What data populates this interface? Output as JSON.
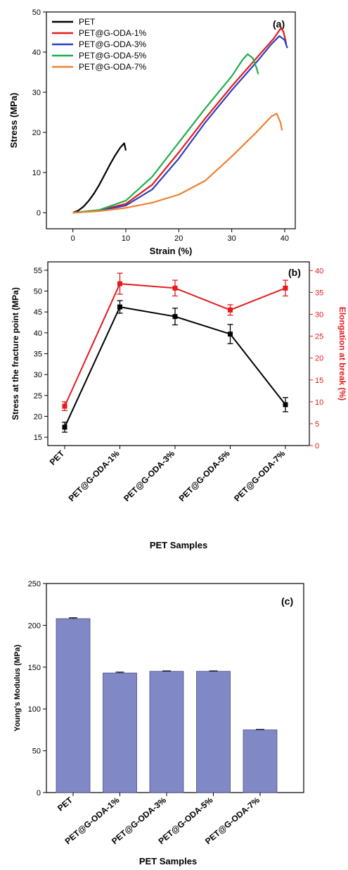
{
  "chart_data": [
    {
      "panel_label": "(a)",
      "type": "line",
      "xlabel": "Strain (%)",
      "ylabel": "Stress (MPa)",
      "xlim": [
        -5,
        42
      ],
      "ylim": [
        -4,
        50
      ],
      "xticks": [
        0,
        10,
        20,
        30,
        40
      ],
      "yticks": [
        0,
        10,
        20,
        30,
        40,
        50
      ],
      "legend_position": "top-left",
      "series": [
        {
          "name": "PET",
          "color": "#000000",
          "points": [
            [
              0,
              0
            ],
            [
              1,
              0.5
            ],
            [
              2,
              1.5
            ],
            [
              3,
              3
            ],
            [
              4,
              4.8
            ],
            [
              5,
              7
            ],
            [
              6,
              9.5
            ],
            [
              7,
              12
            ],
            [
              8,
              14.3
            ],
            [
              9,
              16.3
            ],
            [
              9.7,
              17.3
            ],
            [
              10,
              15.5
            ]
          ]
        },
        {
          "name": "PET@G-ODA-1%",
          "color": "#e41a1c",
          "points": [
            [
              0,
              0
            ],
            [
              5,
              0.6
            ],
            [
              10,
              2.2
            ],
            [
              15,
              7
            ],
            [
              20,
              15
            ],
            [
              25,
              23.5
            ],
            [
              30,
              31.5
            ],
            [
              35,
              39
            ],
            [
              38,
              43.5
            ],
            [
              39.3,
              46
            ],
            [
              39.8,
              45
            ],
            [
              40.3,
              42
            ]
          ]
        },
        {
          "name": "PET@G-ODA-3%",
          "color": "#2b3fbf",
          "points": [
            [
              0,
              0
            ],
            [
              5,
              0.5
            ],
            [
              10,
              1.8
            ],
            [
              15,
              5.8
            ],
            [
              20,
              13.5
            ],
            [
              25,
              22.5
            ],
            [
              30,
              30.5
            ],
            [
              35,
              38
            ],
            [
              37.5,
              42
            ],
            [
              39,
              44
            ],
            [
              40,
              43
            ],
            [
              40.5,
              41
            ]
          ]
        },
        {
          "name": "PET@G-ODA-5%",
          "color": "#1fae4b",
          "points": [
            [
              0,
              0
            ],
            [
              5,
              0.7
            ],
            [
              10,
              3
            ],
            [
              15,
              9
            ],
            [
              20,
              17.5
            ],
            [
              25,
              26
            ],
            [
              30,
              34
            ],
            [
              32,
              38
            ],
            [
              33,
              39.5
            ],
            [
              34,
              38.5
            ],
            [
              34.7,
              36
            ],
            [
              35,
              34.5
            ]
          ]
        },
        {
          "name": "PET@G-ODA-7%",
          "color": "#f07f2e",
          "points": [
            [
              0,
              0
            ],
            [
              5,
              0.4
            ],
            [
              10,
              1.2
            ],
            [
              15,
              2.5
            ],
            [
              20,
              4.5
            ],
            [
              25,
              8
            ],
            [
              30,
              14
            ],
            [
              35,
              20.5
            ],
            [
              37.5,
              24
            ],
            [
              38.5,
              24.7
            ],
            [
              39.2,
              22.5
            ],
            [
              39.5,
              20.5
            ]
          ]
        }
      ]
    },
    {
      "panel_label": "(b)",
      "type": "line",
      "categories": [
        "PET",
        "PET@G-ODA-1%",
        "PET@G-ODA-3%",
        "PET@G-ODA-5%",
        "PET@G-ODA-7%"
      ],
      "xlabel": "PET  Samples",
      "ylabel": "Stress at the fracture point (MPa)",
      "ylabel_right": "Elongation at break (%)",
      "ylim": [
        13,
        57
      ],
      "ylim_right": [
        0,
        42
      ],
      "yticks": [
        15,
        20,
        25,
        30,
        35,
        40,
        45,
        50,
        55
      ],
      "yticks_right": [
        0,
        5,
        10,
        15,
        20,
        25,
        30,
        35,
        40
      ],
      "series": [
        {
          "axis": "left",
          "color": "#000000",
          "marker": "square",
          "values": [
            17.4,
            46.2,
            43.9,
            39.7,
            22.8
          ],
          "errors": [
            1.2,
            1.5,
            2.0,
            2.3,
            1.7
          ]
        },
        {
          "axis": "right",
          "color": "#e41a1c",
          "marker": "square",
          "values": [
            9.0,
            37.0,
            36.0,
            31.0,
            36.0
          ],
          "errors": [
            1.0,
            2.4,
            1.8,
            1.2,
            1.8
          ]
        }
      ]
    },
    {
      "panel_label": "(c)",
      "type": "bar",
      "categories": [
        "PET",
        "PET@G-ODA-1%",
        "PET@G-ODA-3%",
        "PET@G-ODA-5%",
        "PET@G-ODA-7%"
      ],
      "values": [
        208,
        143,
        145,
        145,
        75
      ],
      "errors": [
        1,
        1,
        0.5,
        0.5,
        0.5
      ],
      "xlabel": "PET  Samples",
      "ylabel": "Young's Modulus (MPa)",
      "ylim": [
        0,
        250
      ],
      "yticks": [
        0,
        50,
        100,
        150,
        200,
        250
      ],
      "bar_color": "#8088c6"
    }
  ]
}
